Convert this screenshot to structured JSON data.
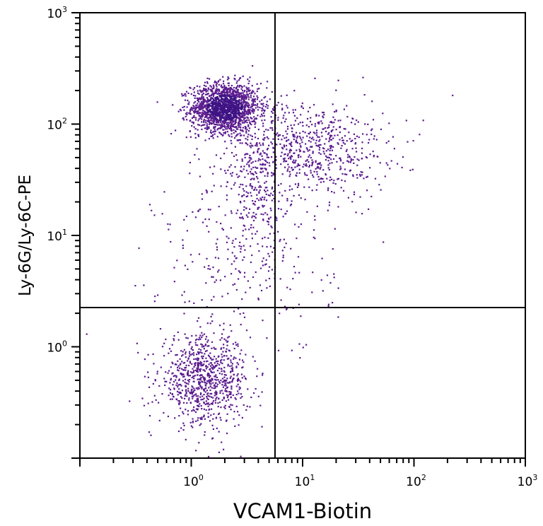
{
  "chart_data": {
    "type": "scatter",
    "title": "",
    "xlabel": "VCAM1-Biotin",
    "ylabel": "Ly-6G/Ly-6C-PE",
    "x_scale": "log",
    "y_scale": "log",
    "xlim": [
      0.1,
      1000
    ],
    "ylim": [
      0.1,
      1000
    ],
    "x_ticks": [
      {
        "base": "10",
        "exp": "0",
        "value": 1
      },
      {
        "base": "10",
        "exp": "1",
        "value": 10
      },
      {
        "base": "10",
        "exp": "2",
        "value": 100
      },
      {
        "base": "10",
        "exp": "3",
        "value": 1000
      }
    ],
    "y_ticks": [
      {
        "base": "10",
        "exp": "0",
        "value": 1
      },
      {
        "base": "10",
        "exp": "1",
        "value": 10
      },
      {
        "base": "10",
        "exp": "2",
        "value": 100
      },
      {
        "base": "10",
        "exp": "3",
        "value": 1000
      }
    ],
    "grid": false,
    "quadrant_gates": {
      "x": 5.65,
      "y": 2.25
    },
    "point_color": "#5b1c8e",
    "dense_color": "#3f1384",
    "populations": [
      {
        "center": [
          2.0,
          140
        ],
        "log_sd": [
          0.15,
          0.11
        ],
        "count": 1700
      },
      {
        "center": [
          12,
          60
        ],
        "log_sd": [
          0.35,
          0.22
        ],
        "count": 650
      },
      {
        "center": [
          4,
          30
        ],
        "log_sd": [
          0.2,
          0.38
        ],
        "count": 300
      },
      {
        "center": [
          1.3,
          0.5
        ],
        "log_sd": [
          0.2,
          0.2
        ],
        "count": 850
      },
      {
        "center": [
          3.2,
          6
        ],
        "log_sd": [
          0.4,
          0.45
        ],
        "count": 260
      }
    ]
  }
}
